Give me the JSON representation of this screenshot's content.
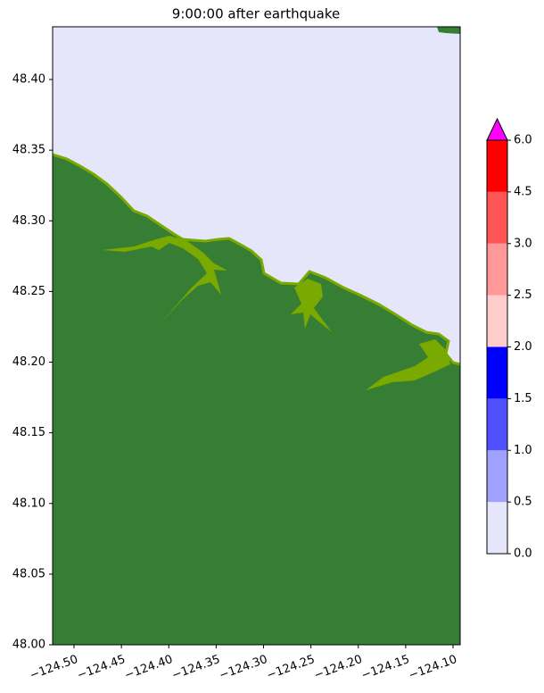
{
  "chart_data": {
    "type": "map",
    "title": "9:00:00 after earthquake",
    "xlim": [
      -124.5226,
      -124.0925
    ],
    "ylim": [
      48.0,
      48.4373
    ],
    "xticks": [
      {
        "value": -124.5,
        "label": "−124.50"
      },
      {
        "value": -124.45,
        "label": "−124.45"
      },
      {
        "value": -124.4,
        "label": "−124.40"
      },
      {
        "value": -124.35,
        "label": "−124.35"
      },
      {
        "value": -124.3,
        "label": "−124.30"
      },
      {
        "value": -124.25,
        "label": "−124.25"
      },
      {
        "value": -124.2,
        "label": "−124.20"
      },
      {
        "value": -124.15,
        "label": "−124.15"
      },
      {
        "value": -124.1,
        "label": "−124.10"
      }
    ],
    "yticks": [
      {
        "value": 48.0,
        "label": "48.00"
      },
      {
        "value": 48.05,
        "label": "48.05"
      },
      {
        "value": 48.1,
        "label": "48.10"
      },
      {
        "value": 48.15,
        "label": "48.15"
      },
      {
        "value": 48.2,
        "label": "48.20"
      },
      {
        "value": 48.25,
        "label": "48.25"
      },
      {
        "value": 48.3,
        "label": "48.30"
      },
      {
        "value": 48.35,
        "label": "48.35"
      },
      {
        "value": 48.4,
        "label": "48.40"
      }
    ],
    "colorbar": {
      "levels": [
        {
          "value": 0,
          "label": "0.0"
        },
        {
          "value": 0.5,
          "label": "0.5"
        },
        {
          "value": 1,
          "label": "1.0"
        },
        {
          "value": 1.5,
          "label": "1.5"
        },
        {
          "value": 2,
          "label": "2.0"
        },
        {
          "value": 2.5,
          "label": "2.5"
        },
        {
          "value": 3,
          "label": "3.0"
        },
        {
          "value": 4.5,
          "label": "4.5"
        },
        {
          "value": 6,
          "label": "6.0"
        }
      ],
      "colors": [
        "#e6e6fa",
        "#a0a0ff",
        "#5050ff",
        "#0000ff",
        "#ffcccc",
        "#ff9999",
        "#ff5555",
        "#ff0000"
      ],
      "extend_color": "#ff00ff"
    }
  }
}
